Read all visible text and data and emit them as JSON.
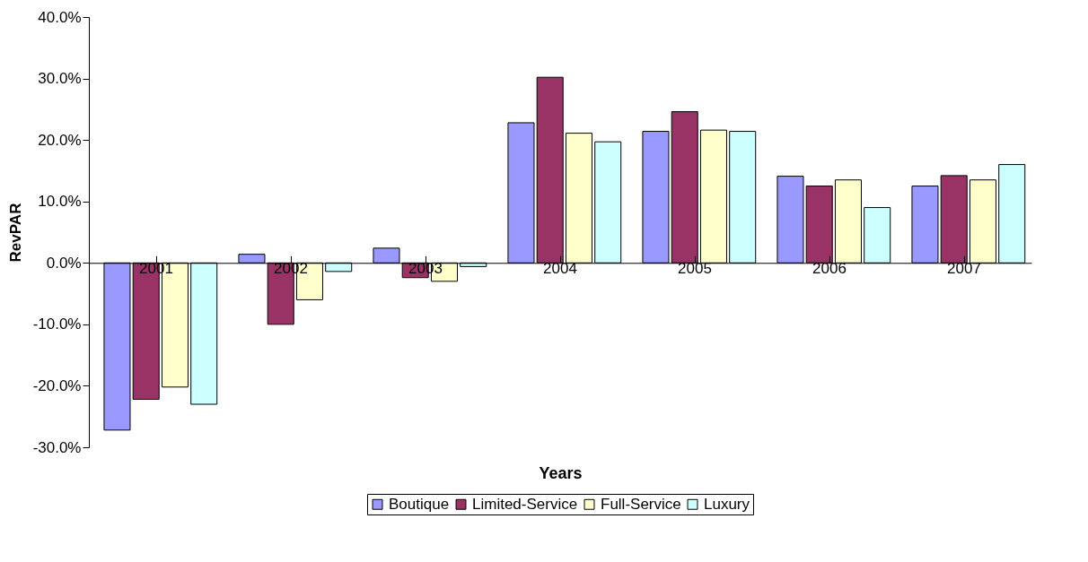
{
  "chart_data": {
    "type": "bar",
    "xlabel": "Years",
    "ylabel": "RevPAR",
    "categories": [
      "2001",
      "2002",
      "2003",
      "2004",
      "2005",
      "2006",
      "2007"
    ],
    "series": [
      {
        "name": "Boutique",
        "color": "#9999ff",
        "values": [
          -27.2,
          1.4,
          2.4,
          22.8,
          21.4,
          14.1,
          12.5
        ]
      },
      {
        "name": "Limited-Service",
        "color": "#993366",
        "values": [
          -22.2,
          -10.0,
          -2.4,
          30.2,
          24.6,
          12.5,
          14.2
        ]
      },
      {
        "name": "Full-Service",
        "color": "#ffffcc",
        "values": [
          -20.2,
          -6.0,
          -3.0,
          21.1,
          21.6,
          13.5,
          13.5
        ]
      },
      {
        "name": "Luxury",
        "color": "#ccffff",
        "values": [
          -23.0,
          -1.4,
          -0.6,
          19.7,
          21.4,
          9.0,
          16.0
        ]
      }
    ],
    "ylim": [
      -30,
      40
    ],
    "yticks": [
      {
        "value": -30,
        "label": "-30.0%"
      },
      {
        "value": -20,
        "label": "-20.0%"
      },
      {
        "value": -10,
        "label": "-10.0%"
      },
      {
        "value": 0,
        "label": "0.0%"
      },
      {
        "value": 10,
        "label": "10.0%"
      },
      {
        "value": 20,
        "label": "20.0%"
      },
      {
        "value": 30,
        "label": "30.0%"
      },
      {
        "value": 40,
        "label": "40.0%"
      }
    ],
    "grid": false,
    "legend": "bottom"
  }
}
